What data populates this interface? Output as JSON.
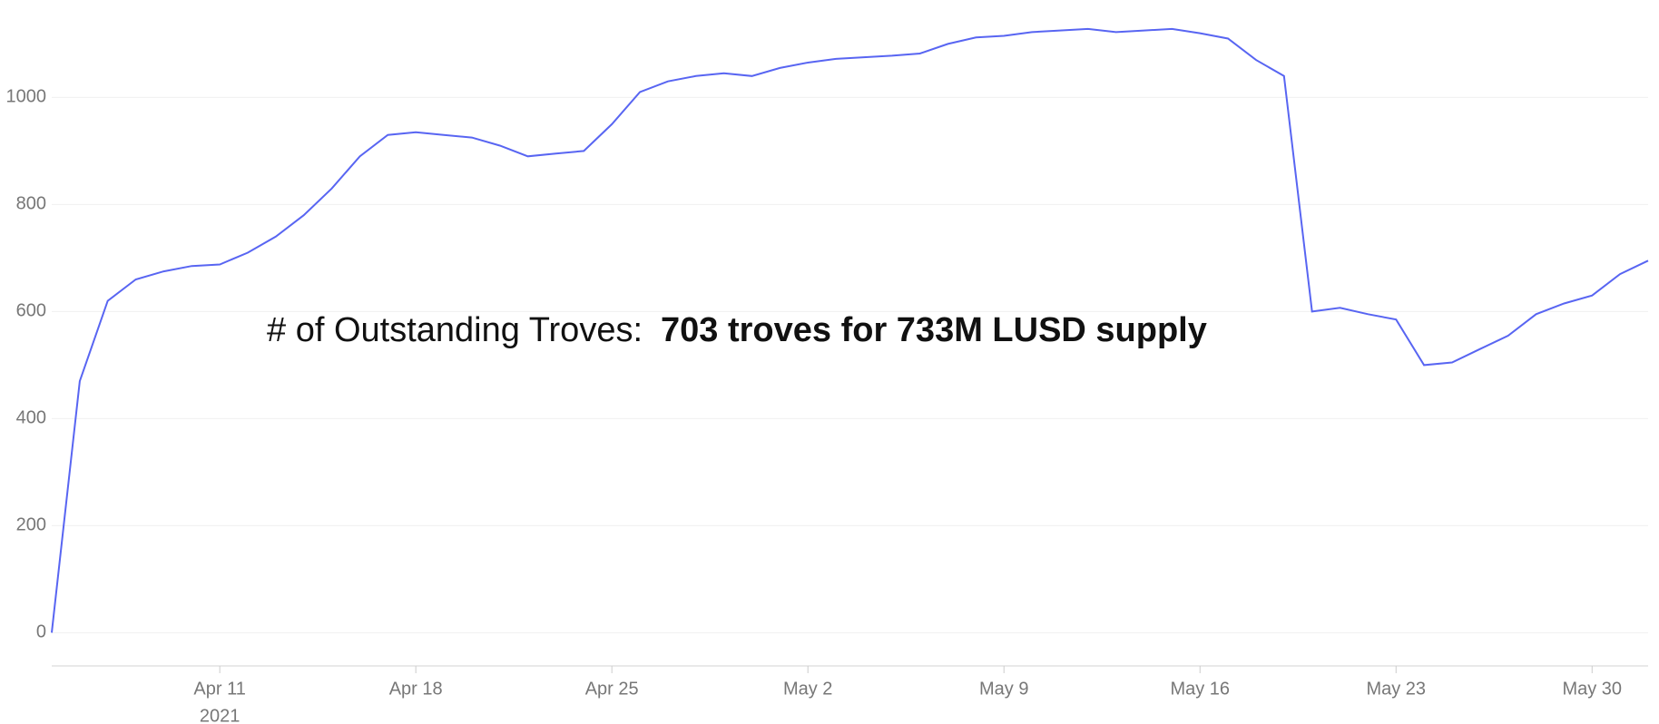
{
  "chart_data": {
    "type": "line",
    "annotation": {
      "label": "# of Outstanding Troves:",
      "value": "703 troves for 733M LUSD supply"
    },
    "x": [
      "2021-04-05",
      "2021-04-06",
      "2021-04-07",
      "2021-04-08",
      "2021-04-09",
      "2021-04-10",
      "2021-04-11",
      "2021-04-12",
      "2021-04-13",
      "2021-04-14",
      "2021-04-15",
      "2021-04-16",
      "2021-04-17",
      "2021-04-18",
      "2021-04-19",
      "2021-04-20",
      "2021-04-21",
      "2021-04-22",
      "2021-04-23",
      "2021-04-24",
      "2021-04-25",
      "2021-04-26",
      "2021-04-27",
      "2021-04-28",
      "2021-04-29",
      "2021-04-30",
      "2021-05-01",
      "2021-05-02",
      "2021-05-03",
      "2021-05-04",
      "2021-05-05",
      "2021-05-06",
      "2021-05-07",
      "2021-05-08",
      "2021-05-09",
      "2021-05-10",
      "2021-05-11",
      "2021-05-12",
      "2021-05-13",
      "2021-05-14",
      "2021-05-15",
      "2021-05-16",
      "2021-05-17",
      "2021-05-18",
      "2021-05-19",
      "2021-05-20",
      "2021-05-21",
      "2021-05-22",
      "2021-05-23",
      "2021-05-24",
      "2021-05-25",
      "2021-05-26",
      "2021-05-27",
      "2021-05-28",
      "2021-05-29",
      "2021-05-30",
      "2021-05-31",
      "2021-06-01"
    ],
    "series": [
      {
        "name": "Troves",
        "color": "#5865f2",
        "values": [
          0,
          470,
          620,
          660,
          675,
          685,
          688,
          710,
          740,
          780,
          830,
          890,
          930,
          935,
          930,
          925,
          910,
          890,
          895,
          900,
          950,
          1010,
          1030,
          1040,
          1045,
          1040,
          1055,
          1065,
          1072,
          1075,
          1078,
          1082,
          1100,
          1112,
          1115,
          1122,
          1125,
          1128,
          1122,
          1125,
          1128,
          1120,
          1110,
          1070,
          1040,
          600,
          607,
          595,
          585,
          500,
          505,
          530,
          555,
          595,
          615,
          630,
          670,
          695
        ]
      }
    ],
    "xlim": [
      "2021-04-05",
      "2021-06-01"
    ],
    "xticks": [
      {
        "value": "2021-04-11",
        "label": "Apr 11",
        "sublabel": "2021"
      },
      {
        "value": "2021-04-18",
        "label": "Apr 18"
      },
      {
        "value": "2021-04-25",
        "label": "Apr 25"
      },
      {
        "value": "2021-05-02",
        "label": "May 2"
      },
      {
        "value": "2021-05-09",
        "label": "May 9"
      },
      {
        "value": "2021-05-16",
        "label": "May 16"
      },
      {
        "value": "2021-05-23",
        "label": "May 23"
      },
      {
        "value": "2021-05-30",
        "label": "May 30"
      }
    ],
    "ylim": [
      -62,
      1182
    ],
    "yticks": [
      0,
      200,
      400,
      600,
      800,
      1000
    ],
    "grid": true
  }
}
